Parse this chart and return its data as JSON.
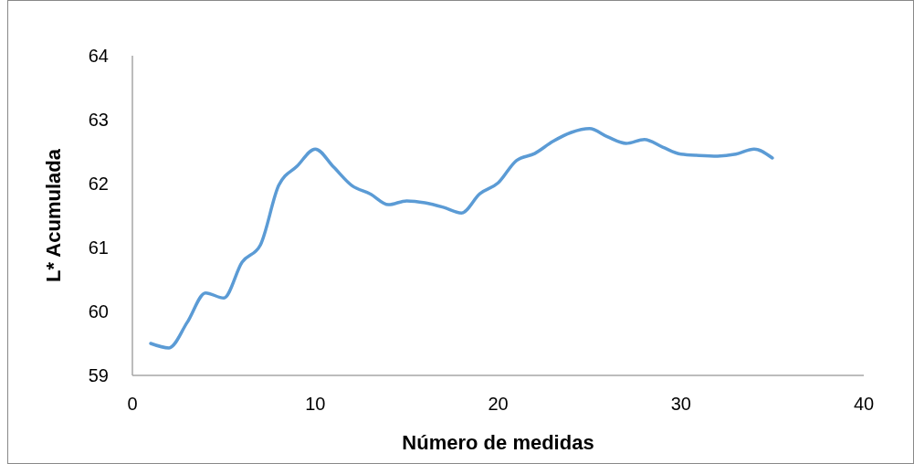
{
  "chart_data": {
    "type": "line",
    "xlabel": "Número de medidas",
    "ylabel": "L* Acumulada",
    "x": [
      1,
      2,
      3,
      4,
      5,
      6,
      7,
      8,
      9,
      10,
      11,
      12,
      13,
      14,
      15,
      16,
      17,
      18,
      19,
      20,
      21,
      22,
      23,
      24,
      25,
      26,
      27,
      28,
      29,
      30,
      31,
      32,
      33,
      34,
      35
    ],
    "series": [
      {
        "color": "#5b9bd5",
        "values": [
          59.5,
          59.43,
          59.83,
          60.29,
          60.21,
          60.77,
          61.04,
          61.97,
          62.27,
          62.54,
          62.26,
          61.97,
          61.84,
          61.67,
          61.73,
          61.7,
          61.63,
          61.54,
          61.84,
          62.01,
          62.36,
          62.47,
          62.66,
          62.8,
          62.86,
          62.73,
          62.63,
          62.69,
          62.57,
          62.46,
          62.44,
          62.43,
          62.46,
          62.54,
          62.4
        ]
      }
    ],
    "xlim": [
      0,
      40
    ],
    "xticks": [
      0,
      10,
      20,
      30,
      40
    ],
    "ylim": [
      59,
      64
    ],
    "yticks": [
      59,
      60,
      61,
      62,
      63,
      64
    ],
    "grid": false,
    "marker": "none",
    "line_style": "solid"
  }
}
